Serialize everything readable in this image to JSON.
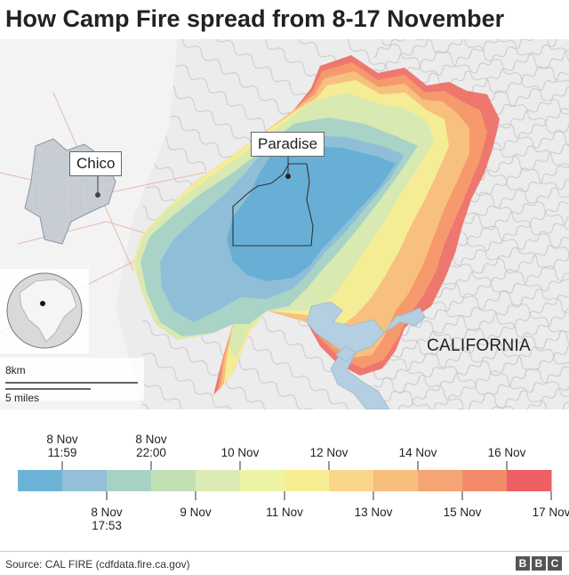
{
  "title": "How Camp Fire spread from 8-17 November",
  "map": {
    "labels": {
      "chico": "Chico",
      "paradise": "Paradise",
      "region": "CALIFORNIA"
    },
    "scale": {
      "km": "8km",
      "miles": "5 miles"
    },
    "colors": {
      "terrain": "#e6e6e6",
      "water": "#b9d2e4",
      "town": "#c7ccd3",
      "fire_early": "#74b4d8",
      "fire_late": "#e9505b"
    },
    "locator": "globe-north-america"
  },
  "legend": {
    "colors": [
      "#6db3d8",
      "#93bfd7",
      "#a9d2c7",
      "#c3e0b2",
      "#dcebb3",
      "#ecf3a3",
      "#f7ee93",
      "#f9d68a",
      "#f7bf7c",
      "#f5a574",
      "#f38b6a",
      "#ec5f64"
    ],
    "top_labels": [
      "8 Nov\n11:59",
      "8 Nov\n22:00",
      "10 Nov",
      "12 Nov",
      "14 Nov",
      "16 Nov"
    ],
    "bottom_labels": [
      "8 Nov\n17:53",
      "9 Nov",
      "11 Nov",
      "13 Nov",
      "15 Nov",
      "17 Nov"
    ]
  },
  "footer": {
    "source": "Source: CAL FIRE (cdfdata.fire.ca.gov)",
    "logo": [
      "B",
      "B",
      "C"
    ]
  }
}
